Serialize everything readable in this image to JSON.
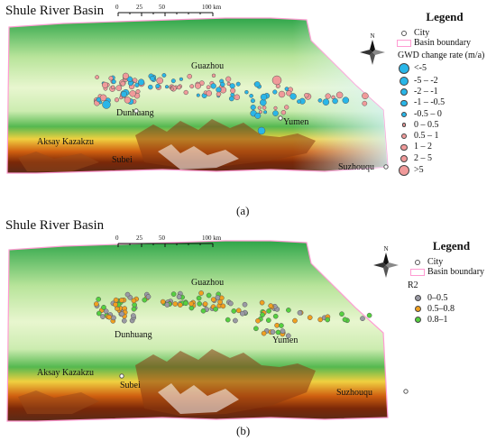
{
  "colors": {
    "increase": "#f09a9a",
    "decrease": "#29b6e8",
    "r2_low": "#9a9aa4",
    "r2_mid": "#f0a020",
    "r2_high": "#55d040",
    "boundary": "#ff9bd2"
  },
  "panel_a": {
    "title": "Shule River Basin",
    "label": "(a)",
    "scale": {
      "ticks": [
        "0",
        "25",
        "50",
        "100 km"
      ]
    },
    "north": "N",
    "places": {
      "guazhou": "Guazhou",
      "dunhuang": "Dunhuang",
      "yumen": "Yumen",
      "aksay": "Aksay Kazakzu",
      "subei": "Subei",
      "suzhouqu": "Suzhouqu"
    },
    "legend": {
      "title": "Legend",
      "city": "City",
      "boundary": "Basin boundary",
      "subtitle": "GWD change rate (m/a)",
      "classes": [
        "<-5",
        "-5 – -2",
        "-2 – -1",
        "-1 – -0.5",
        "-0.5 – 0",
        "0 – 0.5",
        "0.5 – 1",
        "1 – 2",
        "2 – 5",
        ">5"
      ]
    }
  },
  "panel_b": {
    "title": "Shule River Basin",
    "label": "(b)",
    "scale": {
      "ticks": [
        "0",
        "25",
        "50",
        "100 km"
      ]
    },
    "north": "N",
    "places": {
      "guazhou": "Guazhou",
      "dunhuang": "Dunhuang",
      "yumen": "Yumen",
      "aksay": "Aksay Kazakzu",
      "subei": "Subei",
      "suzhouqu": "Suzhouqu"
    },
    "legend": {
      "title": "Legend",
      "city": "City",
      "boundary": "Basin boundary",
      "subtitle": "R2",
      "classes": [
        "0–0.5",
        "0.5–0.8",
        "0.8–1"
      ]
    }
  }
}
